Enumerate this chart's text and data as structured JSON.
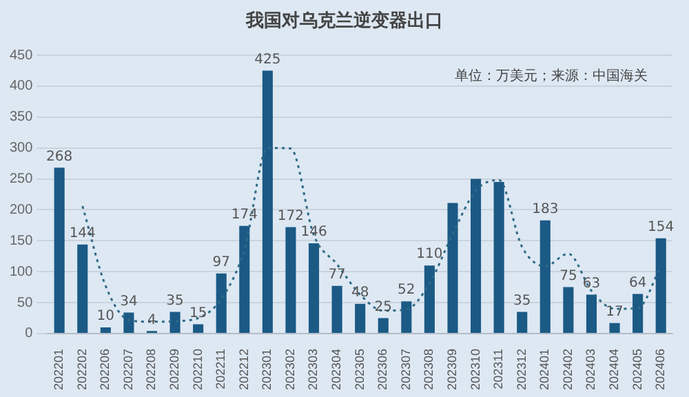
{
  "chart_data": {
    "type": "bar",
    "title": "我国对乌克兰逆变器出口",
    "annotations": [
      "单位：万美元；来源：中国海关"
    ],
    "categories": [
      "202201",
      "202202",
      "202206",
      "202207",
      "202208",
      "202209",
      "202210",
      "202211",
      "202212",
      "202301",
      "202302",
      "202303",
      "202304",
      "202305",
      "202306",
      "202307",
      "202308",
      "202309",
      "202310",
      "202311",
      "202312",
      "202401",
      "202402",
      "202403",
      "202404",
      "202405",
      "202406"
    ],
    "series": [
      {
        "color": "#1b5a85",
        "values": [
          268,
          144,
          10,
          34,
          4,
          35,
          15,
          97,
          174,
          425,
          172,
          146,
          77,
          48,
          25,
          52,
          110,
          211,
          250,
          245,
          35,
          183,
          75,
          63,
          17,
          64,
          154
        ],
        "value_labels": [
          "268",
          "144",
          "10",
          "34",
          "4",
          "35",
          "15",
          "97",
          "174",
          "425",
          "172",
          "146",
          "77",
          "48",
          "25",
          "52",
          "110",
          null,
          null,
          null,
          "35",
          "183",
          "75",
          "63",
          "17",
          "64",
          "154"
        ]
      },
      {
        "type": "line",
        "color": "#2f6a86",
        "line_style": "dotted",
        "marker": "none",
        "values": [
          null,
          206,
          77,
          22,
          19,
          20,
          25,
          56,
          136,
          300,
          299,
          159,
          112,
          63,
          37,
          39,
          81,
          161,
          231,
          248,
          140,
          109,
          129,
          69,
          40,
          41,
          109
        ]
      }
    ],
    "ylim": [
      0,
      450
    ],
    "yticks": [
      0,
      50,
      100,
      150,
      200,
      250,
      300,
      350,
      400,
      450
    ],
    "grid": "y",
    "legend": false
  }
}
